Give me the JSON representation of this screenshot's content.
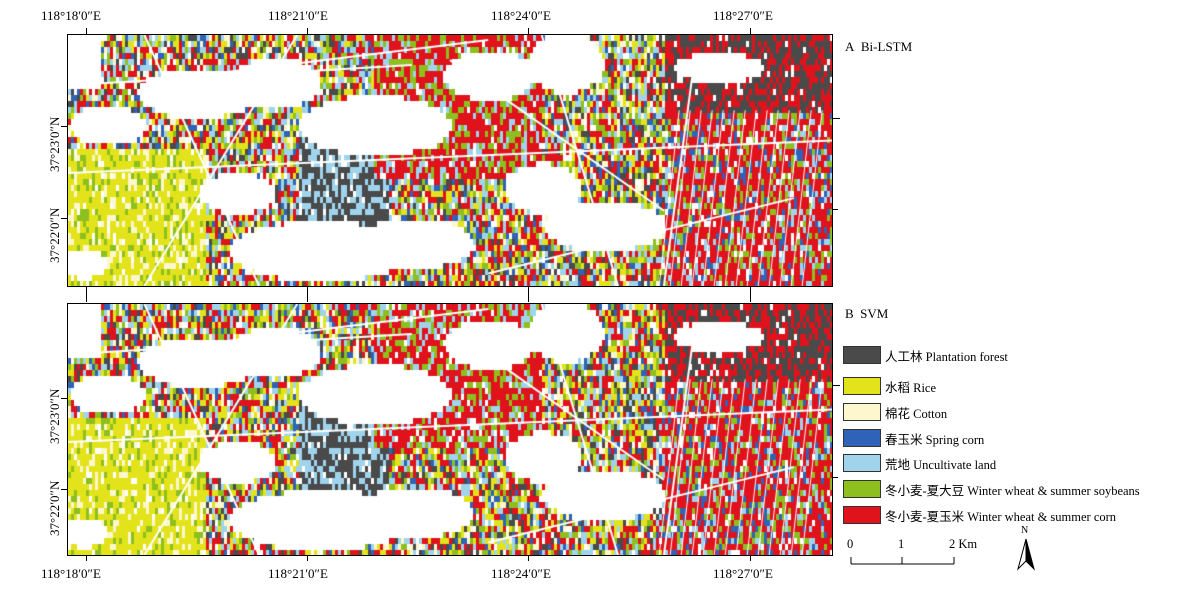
{
  "panels": [
    {
      "id": "A",
      "letter": "A",
      "title": "Bi-LSTM"
    },
    {
      "id": "B",
      "letter": "B",
      "title": "SVM"
    }
  ],
  "longitude_labels_top": [
    "118°18′0″E",
    "118°21′0″E",
    "118°24′0″E",
    "118°27′0″E"
  ],
  "longitude_labels_bottom": [
    "118°18′0″E",
    "118°21′0″E",
    "118°24′0″E",
    "118°27′0″E"
  ],
  "latitude_labels_a": [
    "37°23′0″N",
    "37°22′0″N"
  ],
  "latitude_labels_b": [
    "37°23′0″N",
    "37°22′0″N"
  ],
  "legend": [
    {
      "label": "人工林 Plantation forest",
      "color": "#4a4a4a"
    },
    {
      "label": "水稻 Rice",
      "color": "#e3e31c"
    },
    {
      "label": "棉花 Cotton",
      "color": "#fcf7cc"
    },
    {
      "label": "春玉米 Spring corn",
      "color": "#2f63b8"
    },
    {
      "label": "荒地 Uncultivate land",
      "color": "#9fd4ec"
    },
    {
      "label": "冬小麦-夏大豆 Winter wheat & summer soybeans",
      "color": "#8dbf1f"
    },
    {
      "label": "冬小麦-夏玉米 Winter wheat & summer corn",
      "color": "#e0121c"
    }
  ],
  "scale": {
    "ticks": [
      "0",
      "1",
      "2 Km"
    ]
  },
  "north": {
    "label": "N"
  }
}
